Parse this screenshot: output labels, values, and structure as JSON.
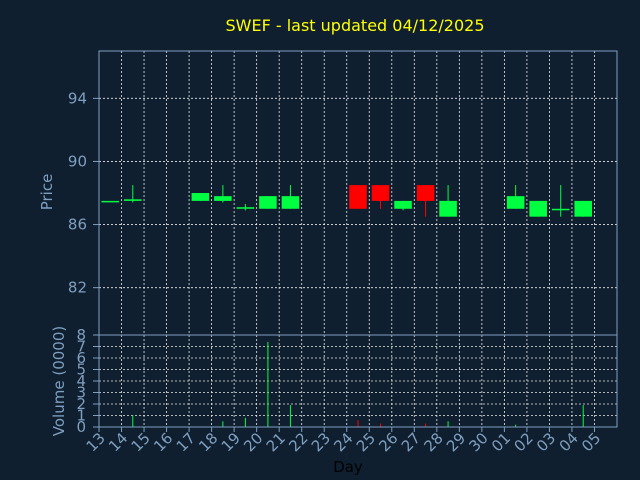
{
  "chart_data": {
    "type": "candlestick",
    "title": "SWEF - last updated 04/12/2025",
    "xlabel": "Day",
    "categories": [
      "13",
      "14",
      "15",
      "16",
      "17",
      "18",
      "19",
      "20",
      "21",
      "22",
      "23",
      "24",
      "25",
      "26",
      "27",
      "28",
      "29",
      "30",
      "01",
      "02",
      "03",
      "04",
      "05"
    ],
    "price_panel": {
      "ylabel": "Price",
      "ylim": [
        79,
        97
      ],
      "yticks": [
        "82",
        "86",
        "90",
        "94"
      ],
      "up_color": "#00ff40",
      "down_color": "#ff0000",
      "candles": [
        {
          "day": "13",
          "open": 87.5,
          "high": 87.5,
          "low": 87.5,
          "close": 87.5
        },
        {
          "day": "14",
          "open": 87.5,
          "high": 88.5,
          "low": 87.4,
          "close": 87.6
        },
        {
          "day": "17",
          "open": 87.5,
          "high": 88.0,
          "low": 87.5,
          "close": 88.0
        },
        {
          "day": "18",
          "open": 87.5,
          "high": 88.5,
          "low": 87.4,
          "close": 87.8
        },
        {
          "day": "19",
          "open": 87.0,
          "high": 87.3,
          "low": 86.9,
          "close": 87.1
        },
        {
          "day": "20",
          "open": 87.0,
          "high": 87.8,
          "low": 87.0,
          "close": 87.8
        },
        {
          "day": "21",
          "open": 87.0,
          "high": 88.5,
          "low": 87.0,
          "close": 87.8
        },
        {
          "day": "24",
          "open": 88.5,
          "high": 88.5,
          "low": 87.0,
          "close": 87.0
        },
        {
          "day": "25",
          "open": 88.5,
          "high": 88.5,
          "low": 87.0,
          "close": 87.5
        },
        {
          "day": "26",
          "open": 87.0,
          "high": 87.5,
          "low": 86.9,
          "close": 87.5
        },
        {
          "day": "27",
          "open": 88.5,
          "high": 88.5,
          "low": 86.5,
          "close": 87.5
        },
        {
          "day": "28",
          "open": 86.5,
          "high": 88.5,
          "low": 86.5,
          "close": 87.5
        },
        {
          "day": "01",
          "open": 87.0,
          "high": 88.5,
          "low": 87.0,
          "close": 87.8
        },
        {
          "day": "02",
          "open": 86.5,
          "high": 87.5,
          "low": 86.5,
          "close": 87.5
        },
        {
          "day": "03",
          "open": 87.0,
          "high": 88.5,
          "low": 86.5,
          "close": 87.0
        },
        {
          "day": "04",
          "open": 86.5,
          "high": 87.5,
          "low": 86.5,
          "close": 87.5
        }
      ]
    },
    "volume_panel": {
      "ylabel": "Volume (0000)",
      "ylim": [
        0,
        8
      ],
      "yticks": [
        "0",
        "1",
        "2",
        "3",
        "4",
        "5",
        "6",
        "7",
        "8"
      ],
      "bars": [
        {
          "day": "14",
          "value": 1.0,
          "color": "#00ff40"
        },
        {
          "day": "18",
          "value": 0.5,
          "color": "#00ff40"
        },
        {
          "day": "19",
          "value": 0.8,
          "color": "#00ff40"
        },
        {
          "day": "20",
          "value": 7.4,
          "color": "#00ff40"
        },
        {
          "day": "21",
          "value": 1.9,
          "color": "#00ff40"
        },
        {
          "day": "24",
          "value": 0.6,
          "color": "#ff0000"
        },
        {
          "day": "25",
          "value": 0.3,
          "color": "#ff0000"
        },
        {
          "day": "27",
          "value": 0.3,
          "color": "#ff0000"
        },
        {
          "day": "28",
          "value": 0.5,
          "color": "#00ff40"
        },
        {
          "day": "01",
          "value": 0.2,
          "color": "#00ff40"
        },
        {
          "day": "04",
          "value": 1.9,
          "color": "#00ff40"
        }
      ]
    },
    "grid": true
  }
}
